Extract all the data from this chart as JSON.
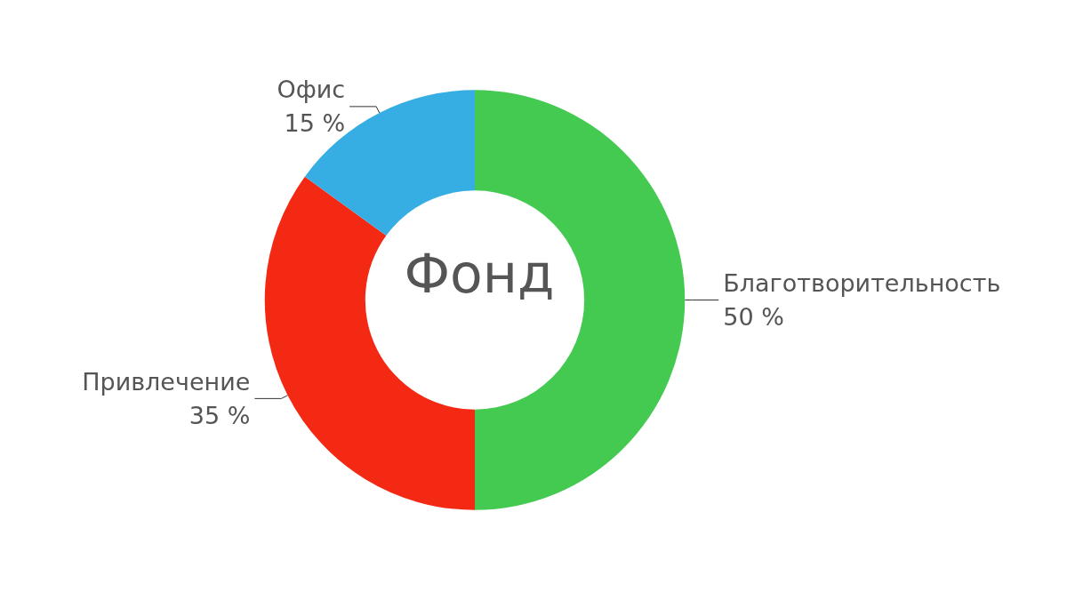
{
  "chart_data": {
    "type": "donut",
    "title": "Фонд",
    "categories": [
      "Благотворительность",
      "Привлечение",
      "Офис"
    ],
    "values": [
      50,
      35,
      15
    ],
    "colors": [
      "#44c951",
      "#f42914",
      "#36aee4"
    ],
    "value_labels": [
      "50 %",
      "35 %",
      "15 %"
    ],
    "legend": false
  }
}
